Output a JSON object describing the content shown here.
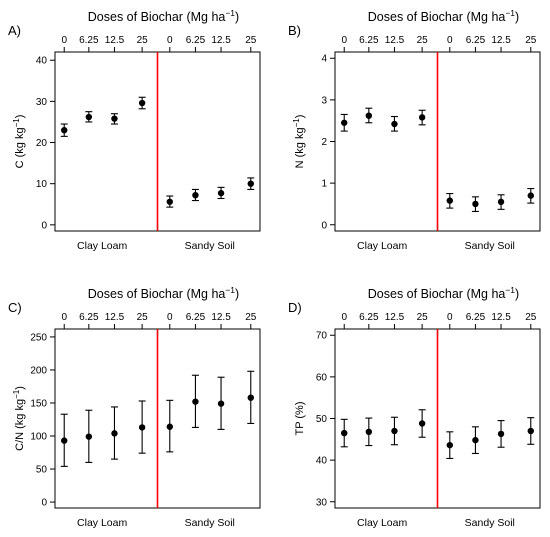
{
  "chart_data": [
    {
      "type": "scatter",
      "panel_label": "A)",
      "title": "Doses of Biochar (Mg ha",
      "title_sup": "−1",
      "title_close": ")",
      "dose_labels": [
        "0",
        "6.25",
        "12.5",
        "25",
        "0",
        "6.25",
        "12.5",
        "25"
      ],
      "group_labels": [
        "Clay Loam",
        "Sandy Soil"
      ],
      "ylabel": "C (kg kg",
      "ylabel_sup": "−1",
      "ylabel_close": ")",
      "ylim": [
        -1.5,
        42
      ],
      "yticks": [
        0,
        10,
        20,
        30,
        40
      ],
      "ytick_labels": [
        "0",
        "10",
        "20",
        "30",
        "40"
      ],
      "divider_color": "#ff0000",
      "points": [
        {
          "group": "Clay Loam",
          "dose": "0",
          "mean": 23.0,
          "low": 21.5,
          "high": 24.5
        },
        {
          "group": "Clay Loam",
          "dose": "6.25",
          "mean": 26.2,
          "low": 25.0,
          "high": 27.5
        },
        {
          "group": "Clay Loam",
          "dose": "12.5",
          "mean": 25.8,
          "low": 24.5,
          "high": 27.0
        },
        {
          "group": "Clay Loam",
          "dose": "25",
          "mean": 29.6,
          "low": 28.2,
          "high": 31.0
        },
        {
          "group": "Sandy Soil",
          "dose": "0",
          "mean": 5.6,
          "low": 4.3,
          "high": 7.0
        },
        {
          "group": "Sandy Soil",
          "dose": "6.25",
          "mean": 7.2,
          "low": 5.9,
          "high": 8.6
        },
        {
          "group": "Sandy Soil",
          "dose": "12.5",
          "mean": 7.7,
          "low": 6.4,
          "high": 9.1
        },
        {
          "group": "Sandy Soil",
          "dose": "25",
          "mean": 10.0,
          "low": 8.6,
          "high": 11.4
        }
      ]
    },
    {
      "type": "scatter",
      "panel_label": "B)",
      "title": "Doses of Biochar (Mg ha",
      "title_sup": "−1",
      "title_close": ")",
      "dose_labels": [
        "0",
        "6.25",
        "12.5",
        "25",
        "0",
        "6.25",
        "12.5",
        "25"
      ],
      "group_labels": [
        "Clay Loam",
        "Sandy Soil"
      ],
      "ylabel": "N (kg kg",
      "ylabel_sup": "−1",
      "ylabel_close": ")",
      "ylim": [
        -0.15,
        4.15
      ],
      "yticks": [
        0,
        1,
        2,
        3,
        4
      ],
      "ytick_labels": [
        "0",
        "1",
        "2",
        "3",
        "4"
      ],
      "divider_color": "#ff0000",
      "points": [
        {
          "group": "Clay Loam",
          "dose": "0",
          "mean": 2.45,
          "low": 2.25,
          "high": 2.65
        },
        {
          "group": "Clay Loam",
          "dose": "6.25",
          "mean": 2.62,
          "low": 2.45,
          "high": 2.8
        },
        {
          "group": "Clay Loam",
          "dose": "12.5",
          "mean": 2.42,
          "low": 2.25,
          "high": 2.6
        },
        {
          "group": "Clay Loam",
          "dose": "25",
          "mean": 2.58,
          "low": 2.4,
          "high": 2.75
        },
        {
          "group": "Sandy Soil",
          "dose": "0",
          "mean": 0.58,
          "low": 0.4,
          "high": 0.75
        },
        {
          "group": "Sandy Soil",
          "dose": "6.25",
          "mean": 0.5,
          "low": 0.32,
          "high": 0.67
        },
        {
          "group": "Sandy Soil",
          "dose": "12.5",
          "mean": 0.55,
          "low": 0.37,
          "high": 0.72
        },
        {
          "group": "Sandy Soil",
          "dose": "25",
          "mean": 0.7,
          "low": 0.52,
          "high": 0.87
        }
      ]
    },
    {
      "type": "scatter",
      "panel_label": "C)",
      "title": "Doses of Biochar (Mg ha",
      "title_sup": "−1",
      "title_close": ")",
      "dose_labels": [
        "0",
        "6.25",
        "12.5",
        "25",
        "0",
        "6.25",
        "12.5",
        "25"
      ],
      "group_labels": [
        "Clay Loam",
        "Sandy Soil"
      ],
      "ylabel": "C/N (kg kg",
      "ylabel_sup": "−1",
      "ylabel_close": ")",
      "ylim": [
        -9,
        262
      ],
      "yticks": [
        0,
        50,
        100,
        150,
        200,
        250
      ],
      "ytick_labels": [
        "0",
        "50",
        "100",
        "150",
        "200",
        "250"
      ],
      "divider_color": "#ff0000",
      "points": [
        {
          "group": "Clay Loam",
          "dose": "0",
          "mean": 93,
          "low": 54,
          "high": 133
        },
        {
          "group": "Clay Loam",
          "dose": "6.25",
          "mean": 99,
          "low": 60,
          "high": 139
        },
        {
          "group": "Clay Loam",
          "dose": "12.5",
          "mean": 104,
          "low": 65,
          "high": 144
        },
        {
          "group": "Clay Loam",
          "dose": "25",
          "mean": 113,
          "low": 74,
          "high": 153
        },
        {
          "group": "Sandy Soil",
          "dose": "0",
          "mean": 114,
          "low": 76,
          "high": 154
        },
        {
          "group": "Sandy Soil",
          "dose": "6.25",
          "mean": 152,
          "low": 113,
          "high": 192
        },
        {
          "group": "Sandy Soil",
          "dose": "12.5",
          "mean": 149,
          "low": 110,
          "high": 189
        },
        {
          "group": "Sandy Soil",
          "dose": "25",
          "mean": 158,
          "low": 119,
          "high": 198
        }
      ]
    },
    {
      "type": "scatter",
      "panel_label": "D)",
      "title": "Doses of Biochar (Mg ha",
      "title_sup": "−1",
      "title_close": ")",
      "dose_labels": [
        "0",
        "6.25",
        "12.5",
        "25",
        "0",
        "6.25",
        "12.5",
        "25"
      ],
      "group_labels": [
        "Clay Loam",
        "Sandy Soil"
      ],
      "ylabel": "TP (%)",
      "ylabel_sup": "",
      "ylabel_close": "",
      "ylim": [
        28.5,
        71.5
      ],
      "yticks": [
        30,
        40,
        50,
        60,
        70
      ],
      "ytick_labels": [
        "30",
        "40",
        "50",
        "60",
        "70"
      ],
      "divider_color": "#ff0000",
      "points": [
        {
          "group": "Clay Loam",
          "dose": "0",
          "mean": 46.5,
          "low": 43.2,
          "high": 49.8
        },
        {
          "group": "Clay Loam",
          "dose": "6.25",
          "mean": 46.8,
          "low": 43.5,
          "high": 50.1
        },
        {
          "group": "Clay Loam",
          "dose": "12.5",
          "mean": 47.0,
          "low": 43.7,
          "high": 50.3
        },
        {
          "group": "Clay Loam",
          "dose": "25",
          "mean": 48.8,
          "low": 45.5,
          "high": 52.1
        },
        {
          "group": "Sandy Soil",
          "dose": "0",
          "mean": 43.6,
          "low": 40.4,
          "high": 46.8
        },
        {
          "group": "Sandy Soil",
          "dose": "6.25",
          "mean": 44.8,
          "low": 41.6,
          "high": 48.0
        },
        {
          "group": "Sandy Soil",
          "dose": "12.5",
          "mean": 46.3,
          "low": 43.1,
          "high": 49.5
        },
        {
          "group": "Sandy Soil",
          "dose": "25",
          "mean": 47.0,
          "low": 43.8,
          "high": 50.2
        }
      ]
    }
  ]
}
